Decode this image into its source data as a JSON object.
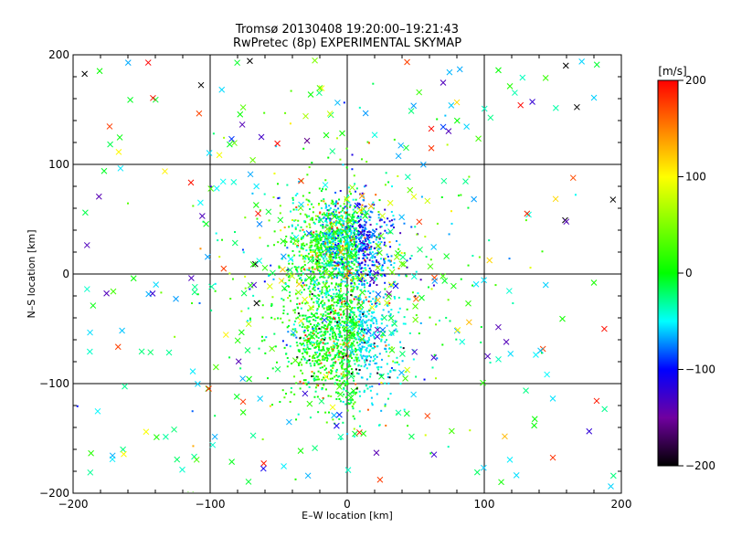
{
  "chart_data": {
    "type": "scatter",
    "title": "Tromsø 20130408 19:20:00–19:21:43",
    "subtitle": "RwPretec (8p) EXPERIMENTAL SKYMAP",
    "xlabel": "E–W location [km]",
    "ylabel": "N–S location [km]",
    "xlim": [
      -200,
      200
    ],
    "ylim": [
      -200,
      200
    ],
    "x_ticks": [
      -200,
      -100,
      0,
      100,
      200
    ],
    "y_ticks": [
      -200,
      -100,
      0,
      100,
      200
    ],
    "grid": true,
    "colorbar": {
      "label": "[m/s]",
      "range": [
        -200,
        200
      ],
      "ticks": [
        -200,
        -100,
        0,
        100,
        200
      ]
    },
    "markers": [
      "dot",
      "cross"
    ],
    "colors": {
      "m200": "#000000",
      "m150": "#7000a0",
      "m100": "#0000ff",
      "m50": "#00ffff",
      "zero": "#00ff00",
      "p100": "#ffff00",
      "p150": "#ff8000",
      "p200": "#ff0000"
    }
  }
}
